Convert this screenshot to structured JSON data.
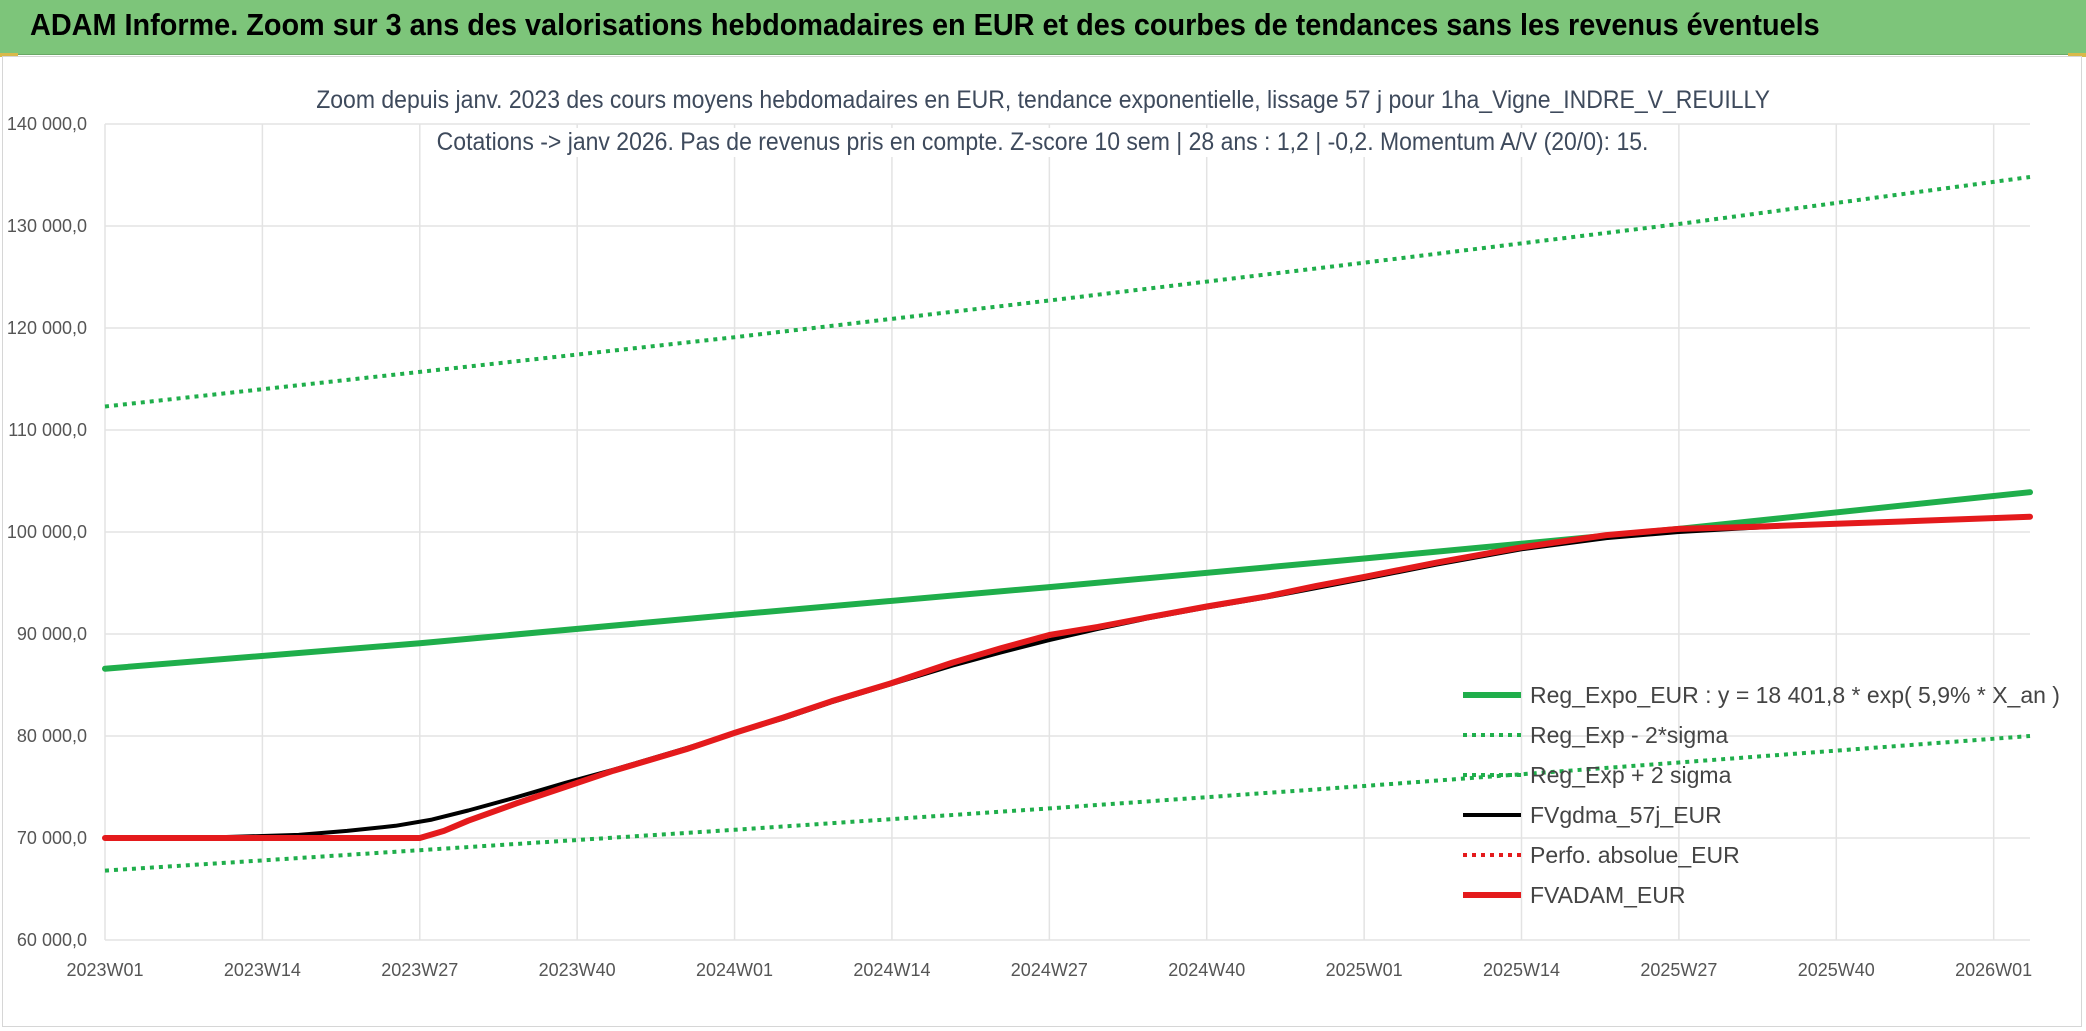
{
  "banner": {
    "title": "ADAM Informe. Zoom sur 3 ans des valorisations hebdomadaires en EUR et des courbes de tendances sans les revenus éventuels"
  },
  "chart_data": {
    "type": "line",
    "title_line1": "Zoom depuis janv. 2023 des cours moyens hebdomadaires en EUR, tendance exponentielle, lissage 57 j pour 1ha_Vigne_INDRE_V_REUILLY",
    "title_line2": "Cotations -> janv 2026. Pas de revenus pris en compte. Z-score 10 sem | 28 ans : 1,2 | -0,2. Momentum A/V (20/0): 15.",
    "xlabel": "",
    "ylabel": "",
    "ylim": [
      60000,
      140000
    ],
    "yticks": [
      60000,
      70000,
      80000,
      90000,
      100000,
      110000,
      120000,
      130000,
      140000
    ],
    "ytick_labels": [
      "60 000,0",
      "70 000,0",
      "80 000,0",
      "90 000,0",
      "100 000,0",
      "110 000,0",
      "120 000,0",
      "130 000,0",
      "140 000,0"
    ],
    "xlim": [
      0,
      159
    ],
    "xticks": [
      0,
      13,
      26,
      39,
      52,
      65,
      78,
      91,
      104,
      117,
      130,
      143,
      156
    ],
    "xtick_labels": [
      "2023W01",
      "2023W14",
      "2023W27",
      "2023W40",
      "2024W01",
      "2024W14",
      "2024W27",
      "2024W40",
      "2025W01",
      "2025W14",
      "2025W27",
      "2025W40",
      "2026W01"
    ],
    "grid": true,
    "legend_position": "bottom-right",
    "series": [
      {
        "name": "Reg_Expo_EUR : y = 18 401,8 * exp( 5,9% *  X_an )",
        "color": "#1fae4b",
        "style": "solid-thick",
        "x": [
          0,
          26,
          52,
          78,
          104,
          130,
          159
        ],
        "y": [
          86600,
          89100,
          91900,
          94600,
          97400,
          100300,
          103900
        ]
      },
      {
        "name": "Reg_Exp - 2*sigma",
        "color": "#1fae4b",
        "style": "dotted",
        "x": [
          0,
          26,
          52,
          78,
          104,
          130,
          159
        ],
        "y": [
          66800,
          68800,
          70800,
          72900,
          75100,
          77400,
          80000
        ]
      },
      {
        "name": "Reg_Exp + 2 sigma",
        "color": "#1fae4b",
        "style": "dotted",
        "x": [
          0,
          26,
          52,
          78,
          104,
          130,
          159
        ],
        "y": [
          112300,
          115700,
          119100,
          122700,
          126400,
          130200,
          134800
        ]
      },
      {
        "name": "FVgdma_57j_EUR",
        "color": "#000000",
        "style": "solid",
        "x": [
          0,
          10,
          16,
          20,
          24,
          27,
          30,
          34,
          38,
          42,
          48,
          52,
          56,
          60,
          65,
          70,
          74,
          78,
          82,
          86,
          91,
          96,
          100,
          104,
          110,
          117,
          124,
          130,
          136,
          143,
          150,
          159
        ],
        "y": [
          70000,
          70100,
          70300,
          70700,
          71200,
          71800,
          72700,
          74000,
          75400,
          76700,
          78800,
          80300,
          81700,
          83300,
          85100,
          86900,
          88200,
          89400,
          90500,
          91500,
          92600,
          93600,
          94500,
          95400,
          96800,
          98300,
          99400,
          100000,
          100400,
          100800,
          101100,
          101500
        ]
      },
      {
        "name": "Perfo. absolue_EUR",
        "color": "#e41a1c",
        "style": "dotted",
        "x": [
          0,
          26,
          28,
          30,
          34,
          38,
          42,
          48,
          52,
          56,
          60,
          65,
          70,
          74,
          78,
          82,
          86,
          91,
          96,
          100,
          104,
          110,
          117,
          124,
          130,
          136,
          143,
          150,
          159
        ],
        "y": [
          70000,
          70000,
          70700,
          71700,
          73400,
          75000,
          76600,
          78700,
          80300,
          81800,
          83400,
          85200,
          87200,
          88600,
          89900,
          90700,
          91600,
          92700,
          93700,
          94700,
          95600,
          97000,
          98500,
          99700,
          100300,
          100500,
          100800,
          101100,
          101500
        ]
      },
      {
        "name": "FVADAM_EUR",
        "color": "#e41a1c",
        "style": "solid-thick",
        "x": [
          0,
          26,
          28,
          30,
          34,
          38,
          42,
          48,
          52,
          56,
          60,
          65,
          70,
          74,
          78,
          82,
          86,
          91,
          96,
          100,
          104,
          110,
          117,
          124,
          130,
          136,
          143,
          150,
          159
        ],
        "y": [
          70000,
          70000,
          70700,
          71700,
          73400,
          75000,
          76600,
          78700,
          80300,
          81800,
          83400,
          85200,
          87200,
          88600,
          89900,
          90700,
          91600,
          92700,
          93700,
          94700,
          95600,
          97000,
          98500,
          99700,
          100300,
          100500,
          100800,
          101100,
          101500
        ]
      }
    ]
  }
}
